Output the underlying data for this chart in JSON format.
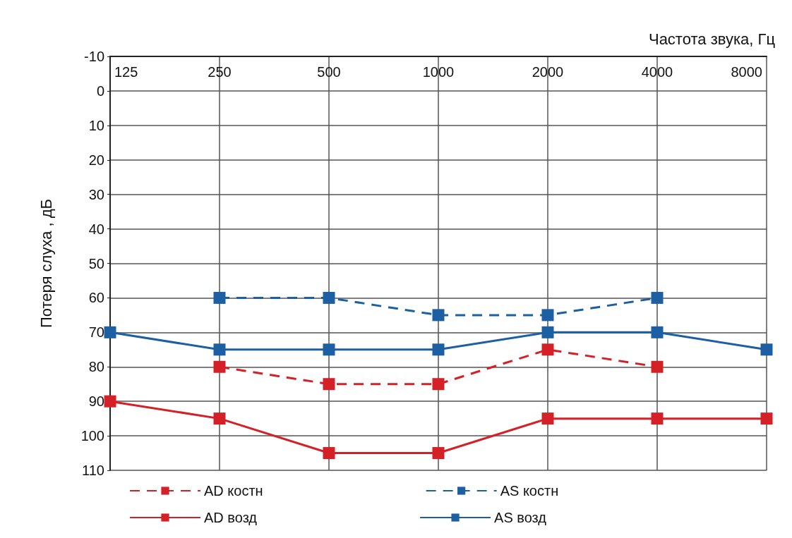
{
  "chart_data": {
    "type": "line",
    "xlabel": "Частота звука, Гц",
    "ylabel": "Потеря слуха , дБ",
    "categories": [
      "125",
      "250",
      "500",
      "1000",
      "2000",
      "4000",
      "8000"
    ],
    "series": [
      {
        "name": "AD костн",
        "color": "#d42027",
        "line_style": "dashed",
        "values": [
          null,
          80,
          85,
          85,
          75,
          80,
          null
        ]
      },
      {
        "name": "AS костн",
        "color": "#1c5fa3",
        "line_style": "dashed",
        "values": [
          null,
          60,
          60,
          65,
          65,
          60,
          null
        ]
      },
      {
        "name": "AD возд",
        "color": "#d42027",
        "line_style": "solid",
        "values": [
          90,
          95,
          105,
          105,
          95,
          95,
          95
        ]
      },
      {
        "name": "AS возд",
        "color": "#1c5fa3",
        "line_style": "solid",
        "values": [
          70,
          75,
          75,
          75,
          70,
          70,
          75
        ]
      }
    ],
    "ylim": [
      110,
      -10
    ],
    "yticks": [
      -10,
      0,
      10,
      20,
      30,
      40,
      50,
      60,
      70,
      80,
      90,
      100,
      110
    ],
    "grid": true,
    "legend": "bottom",
    "marker": "square"
  }
}
